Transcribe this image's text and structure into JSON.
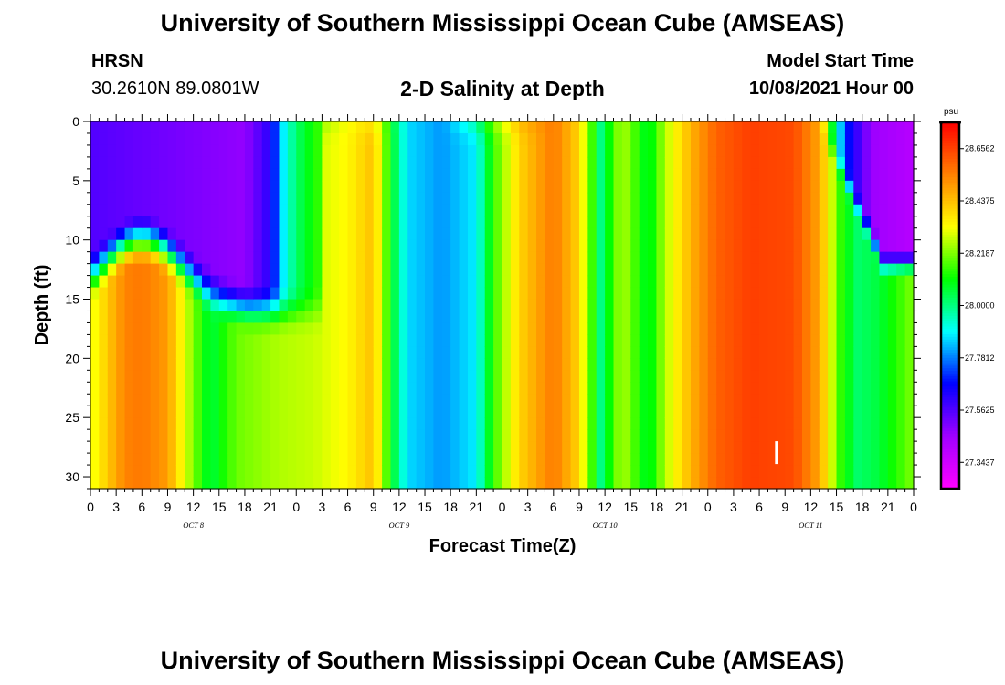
{
  "header": {
    "title": "University of Southern Mississippi Ocean Cube (AMSEAS)",
    "station_code": "HRSN",
    "station_coords": "30.2610N  89.0801W",
    "chart_title": "2-D Salinity at Depth",
    "model_start_label": "Model Start Time",
    "model_start_value": "10/08/2021 Hour 00"
  },
  "footer": {
    "title": "University of Southern Mississippi Ocean Cube (AMSEAS)"
  },
  "chart_data": {
    "type": "heatmap",
    "xlabel": "Forecast Time(Z)",
    "ylabel": "Depth (ft)",
    "x_hours": [
      0,
      96
    ],
    "y_depth_ft": [
      0,
      31
    ],
    "x_tick_labels": [
      "0",
      "3",
      "6",
      "9",
      "12",
      "15",
      "18",
      "21",
      "0",
      "3",
      "6",
      "9",
      "12",
      "15",
      "18",
      "21",
      "0",
      "3",
      "6",
      "9",
      "12",
      "15",
      "18",
      "21",
      "0",
      "3",
      "6",
      "9",
      "12",
      "15",
      "18",
      "21",
      "0"
    ],
    "y_tick_values": [
      0,
      5,
      10,
      15,
      20,
      25,
      30
    ],
    "day_labels": [
      {
        "text": "OCT 8",
        "hour": 12
      },
      {
        "text": "OCT 9",
        "hour": 36
      },
      {
        "text": "OCT 10",
        "hour": 60
      },
      {
        "text": "OCT 11",
        "hour": 84
      }
    ],
    "colorbar": {
      "unit": "psu",
      "range": [
        27.234,
        28.766
      ],
      "tick_labels": [
        "28.6562",
        "28.4375",
        "28.2187",
        "28.0000",
        "27.7812",
        "27.5625",
        "27.3437"
      ]
    },
    "colors": [
      "#ff00ff",
      "#a000ff",
      "#0000ff",
      "#00ffff",
      "#00ff00",
      "#ffff00",
      "#ff8000",
      "#ff0000"
    ],
    "marker": {
      "hour": 80,
      "depth_ft": 28
    },
    "surface_profile_psu": [
      {
        "hour": 0,
        "value": 27.56
      },
      {
        "hour": 18,
        "value": 27.47
      },
      {
        "hour": 21,
        "value": 27.62
      },
      {
        "hour": 22.5,
        "value": 27.88
      },
      {
        "hour": 24,
        "value": 28.02
      },
      {
        "hour": 26,
        "value": 28.12
      },
      {
        "hour": 29,
        "value": 28.28
      },
      {
        "hour": 32,
        "value": 28.33
      },
      {
        "hour": 34,
        "value": 28.22
      },
      {
        "hour": 35.5,
        "value": 28.02
      },
      {
        "hour": 37,
        "value": 27.86
      },
      {
        "hour": 41,
        "value": 27.8
      },
      {
        "hour": 44,
        "value": 28.0
      },
      {
        "hour": 46,
        "value": 28.2
      },
      {
        "hour": 48,
        "value": 28.38
      },
      {
        "hour": 50,
        "value": 28.5
      },
      {
        "hour": 54,
        "value": 28.56
      },
      {
        "hour": 57,
        "value": 28.4
      },
      {
        "hour": 59.5,
        "value": 28.0
      },
      {
        "hour": 62,
        "value": 28.27
      },
      {
        "hour": 65,
        "value": 28.06
      },
      {
        "hour": 67,
        "value": 28.26
      },
      {
        "hour": 70,
        "value": 28.46
      },
      {
        "hour": 73,
        "value": 28.6
      },
      {
        "hour": 77,
        "value": 28.66
      },
      {
        "hour": 82,
        "value": 28.64
      },
      {
        "hour": 85,
        "value": 28.48
      },
      {
        "hour": 86.5,
        "value": 28.08
      },
      {
        "hour": 88,
        "value": 27.72
      },
      {
        "hour": 91,
        "value": 27.46
      },
      {
        "hour": 96,
        "value": 27.4
      }
    ],
    "bottom_profile_psu": [
      {
        "hour": 0,
        "value": 28.3
      },
      {
        "hour": 2,
        "value": 28.42
      },
      {
        "hour": 4,
        "value": 28.54
      },
      {
        "hour": 6,
        "value": 28.56
      },
      {
        "hour": 9,
        "value": 28.5
      },
      {
        "hour": 11,
        "value": 28.3
      },
      {
        "hour": 14,
        "value": 28.05
      },
      {
        "hour": 17,
        "value": 28.2
      },
      {
        "hour": 22,
        "value": 28.26
      },
      {
        "hour": 26,
        "value": 28.28
      },
      {
        "hour": 30,
        "value": 28.34
      },
      {
        "hour": 33,
        "value": 28.44
      },
      {
        "hour": 35,
        "value": 28.1
      },
      {
        "hour": 37,
        "value": 27.86
      },
      {
        "hour": 41,
        "value": 27.8
      },
      {
        "hour": 45,
        "value": 27.88
      },
      {
        "hour": 47,
        "value": 28.15
      },
      {
        "hour": 50,
        "value": 28.4
      },
      {
        "hour": 54,
        "value": 28.56
      },
      {
        "hour": 57,
        "value": 28.4
      },
      {
        "hour": 59.5,
        "value": 28.0
      },
      {
        "hour": 62,
        "value": 28.27
      },
      {
        "hour": 65,
        "value": 28.06
      },
      {
        "hour": 67,
        "value": 28.26
      },
      {
        "hour": 70,
        "value": 28.46
      },
      {
        "hour": 73,
        "value": 28.6
      },
      {
        "hour": 77,
        "value": 28.66
      },
      {
        "hour": 82,
        "value": 28.64
      },
      {
        "hour": 85,
        "value": 28.48
      },
      {
        "hour": 87.5,
        "value": 28.15
      },
      {
        "hour": 89.5,
        "value": 28.02
      },
      {
        "hour": 92,
        "value": 28.06
      },
      {
        "hour": 96,
        "value": 28.22
      }
    ]
  }
}
